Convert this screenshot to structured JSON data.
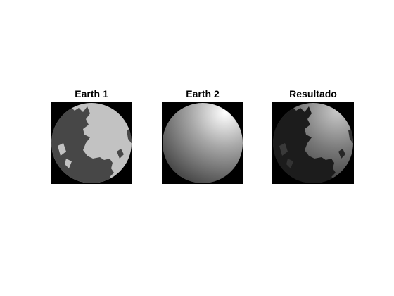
{
  "figure": {
    "background": "#ffffff",
    "panels": [
      {
        "title": "Earth 1"
      },
      {
        "title": "Earth 2"
      },
      {
        "title": "Resultado"
      }
    ]
  },
  "colors": {
    "axes_background": "#000000",
    "earth1_land": "#c2c2c2",
    "earth1_ocean": "#474747",
    "earth2_highlight": "#ffffff",
    "earth2_shade": "#4a4a4a",
    "result_land_light": "#a0a0a0",
    "result_ocean": "#1c1c1c"
  }
}
